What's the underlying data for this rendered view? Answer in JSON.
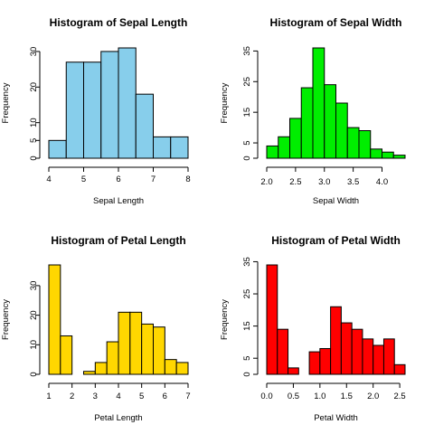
{
  "chart_data": [
    {
      "type": "bar",
      "title": "Histogram of Sepal Length",
      "xlabel": "Sepal Length",
      "ylabel": "Frequency",
      "color": "#87CEEB",
      "bin_edges": [
        4.0,
        4.5,
        5.0,
        5.5,
        6.0,
        6.5,
        7.0,
        7.5,
        8.0
      ],
      "values": [
        5,
        27,
        27,
        30,
        31,
        18,
        6,
        6
      ],
      "xlim": [
        4,
        8
      ],
      "ylim": [
        0,
        31
      ],
      "xticks": [
        4,
        5,
        6,
        7,
        8
      ],
      "yticks": [
        0,
        5,
        10,
        20,
        30
      ]
    },
    {
      "type": "bar",
      "title": "Histogram of Sepal Width",
      "xlabel": "Sepal Width",
      "ylabel": "Frequency",
      "color": "#00EE00",
      "bin_edges": [
        2.0,
        2.2,
        2.4,
        2.6,
        2.8,
        3.0,
        3.2,
        3.4,
        3.6,
        3.8,
        4.0,
        4.2,
        4.4
      ],
      "values": [
        4,
        7,
        13,
        23,
        36,
        24,
        18,
        10,
        9,
        3,
        2,
        1
      ],
      "xlim": [
        2.0,
        4.4
      ],
      "ylim": [
        0,
        36
      ],
      "xticks": [
        2.0,
        2.5,
        3.0,
        3.5,
        4.0
      ],
      "xtick_labels": [
        "2.0",
        "2.5",
        "3.0",
        "3.5",
        "4.0"
      ],
      "yticks": [
        0,
        5,
        15,
        25,
        35
      ]
    },
    {
      "type": "bar",
      "title": "Histogram of Petal Length",
      "xlabel": "Petal Length",
      "ylabel": "Frequency",
      "color": "#FFD700",
      "bin_edges": [
        1.0,
        1.5,
        2.0,
        2.5,
        3.0,
        3.5,
        4.0,
        4.5,
        5.0,
        5.5,
        6.0,
        6.5,
        7.0
      ],
      "values": [
        37,
        13,
        0,
        1,
        4,
        11,
        21,
        21,
        17,
        16,
        5,
        4
      ],
      "xlim": [
        1,
        7
      ],
      "ylim": [
        0,
        37
      ],
      "xticks": [
        1,
        2,
        3,
        4,
        5,
        6,
        7
      ],
      "yticks": [
        0,
        10,
        20,
        30
      ]
    },
    {
      "type": "bar",
      "title": "Histogram of Petal Width",
      "xlabel": "Petal Width",
      "ylabel": "Frequency",
      "color": "#FF0000",
      "bin_edges": [
        0.0,
        0.2,
        0.4,
        0.6,
        0.8,
        1.0,
        1.2,
        1.4,
        1.6,
        1.8,
        2.0,
        2.2,
        2.4,
        2.6
      ],
      "values": [
        34,
        14,
        2,
        0,
        7,
        8,
        21,
        16,
        14,
        11,
        9,
        11,
        3
      ],
      "xlim": [
        0.0,
        2.6
      ],
      "ylim": [
        0,
        34
      ],
      "xticks": [
        0.0,
        0.5,
        1.0,
        1.5,
        2.0,
        2.5
      ],
      "xtick_labels": [
        "0.0",
        "0.5",
        "1.0",
        "1.5",
        "2.0",
        "2.5"
      ],
      "yticks": [
        0,
        5,
        15,
        25,
        35
      ]
    }
  ]
}
